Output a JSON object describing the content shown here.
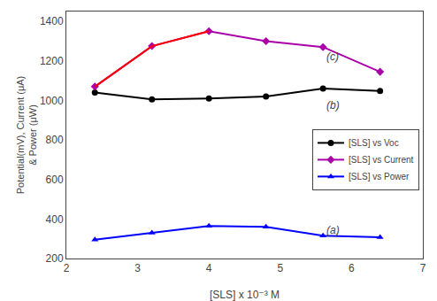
{
  "chart_data": {
    "type": "line",
    "x": [
      2.4,
      3.2,
      4.0,
      4.8,
      5.6,
      6.4
    ],
    "series": [
      {
        "name": "[SLS] vs Voc",
        "color": "#000000",
        "marker": "circle",
        "values": [
          1040,
          1005,
          1010,
          1020,
          1060,
          1048
        ]
      },
      {
        "name": "[SLS] vs Current",
        "color": "#aa00aa",
        "marker": "diamond",
        "values": [
          1070,
          1275,
          1350,
          1300,
          1270,
          1145
        ]
      },
      {
        "color": "red",
        "values": [
          1070,
          1275,
          1350,
          null,
          null,
          null
        ]
      },
      {
        "name": "[SLS] vs Power",
        "color": "#0000ff",
        "marker": "triangle-up",
        "values": [
          295,
          330,
          365,
          360,
          315,
          308
        ]
      }
    ],
    "xlabel": "[SLS] x 10⁻³ M",
    "ylabel": "Potential(mV), Current (μA)\n& Power (μW)",
    "xlim": [
      2.0,
      7.0
    ],
    "ylim": [
      200,
      1450
    ],
    "xticks": [
      2,
      3,
      4,
      5,
      6,
      7
    ],
    "yticks": [
      200,
      400,
      600,
      800,
      1000,
      1200,
      1400
    ],
    "annotations": [
      {
        "text": "(a)",
        "x": 5.62,
        "y": 345
      },
      {
        "text": "(b)",
        "x": 5.62,
        "y": 975
      },
      {
        "text": "(c)",
        "x": 5.62,
        "y": 1220
      }
    ],
    "legend": "right",
    "grid": false
  }
}
